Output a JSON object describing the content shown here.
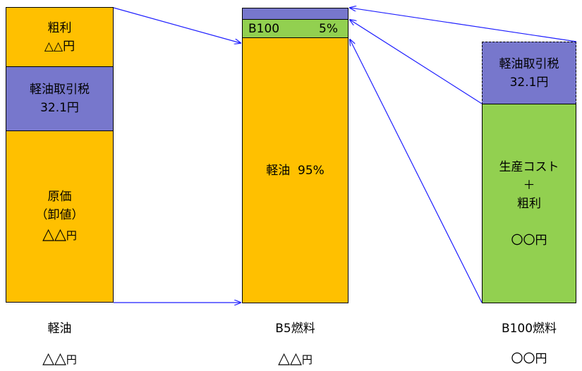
{
  "colors": {
    "orange": "#ffc000",
    "blue": "#7777cc",
    "green": "#92d050",
    "arrow": "#1f1fff"
  },
  "col1": {
    "margin_l1": "粗利",
    "margin_l2": "△△円",
    "tax_l1": "軽油取引税",
    "tax_l2": "32.1円",
    "cost_l1": "原価",
    "cost_l2": "（卸値）",
    "cost_l3": "△△",
    "cost_l3_unit": "円",
    "label": "軽油",
    "price": "△△",
    "price_unit": "円"
  },
  "col2": {
    "b100_name": "B100",
    "b100_pct": "5%",
    "diesel": "軽油  95%",
    "label": "B5燃料",
    "price": "△△",
    "price_unit": "円"
  },
  "col3": {
    "tax_l1": "軽油取引税",
    "tax_l2": "32.1円",
    "prod_l1": "生産コスト",
    "prod_l2": "＋",
    "prod_l3": "粗利",
    "prod_l4": "〇〇円",
    "label": "B100燃料",
    "price": "〇〇円"
  }
}
